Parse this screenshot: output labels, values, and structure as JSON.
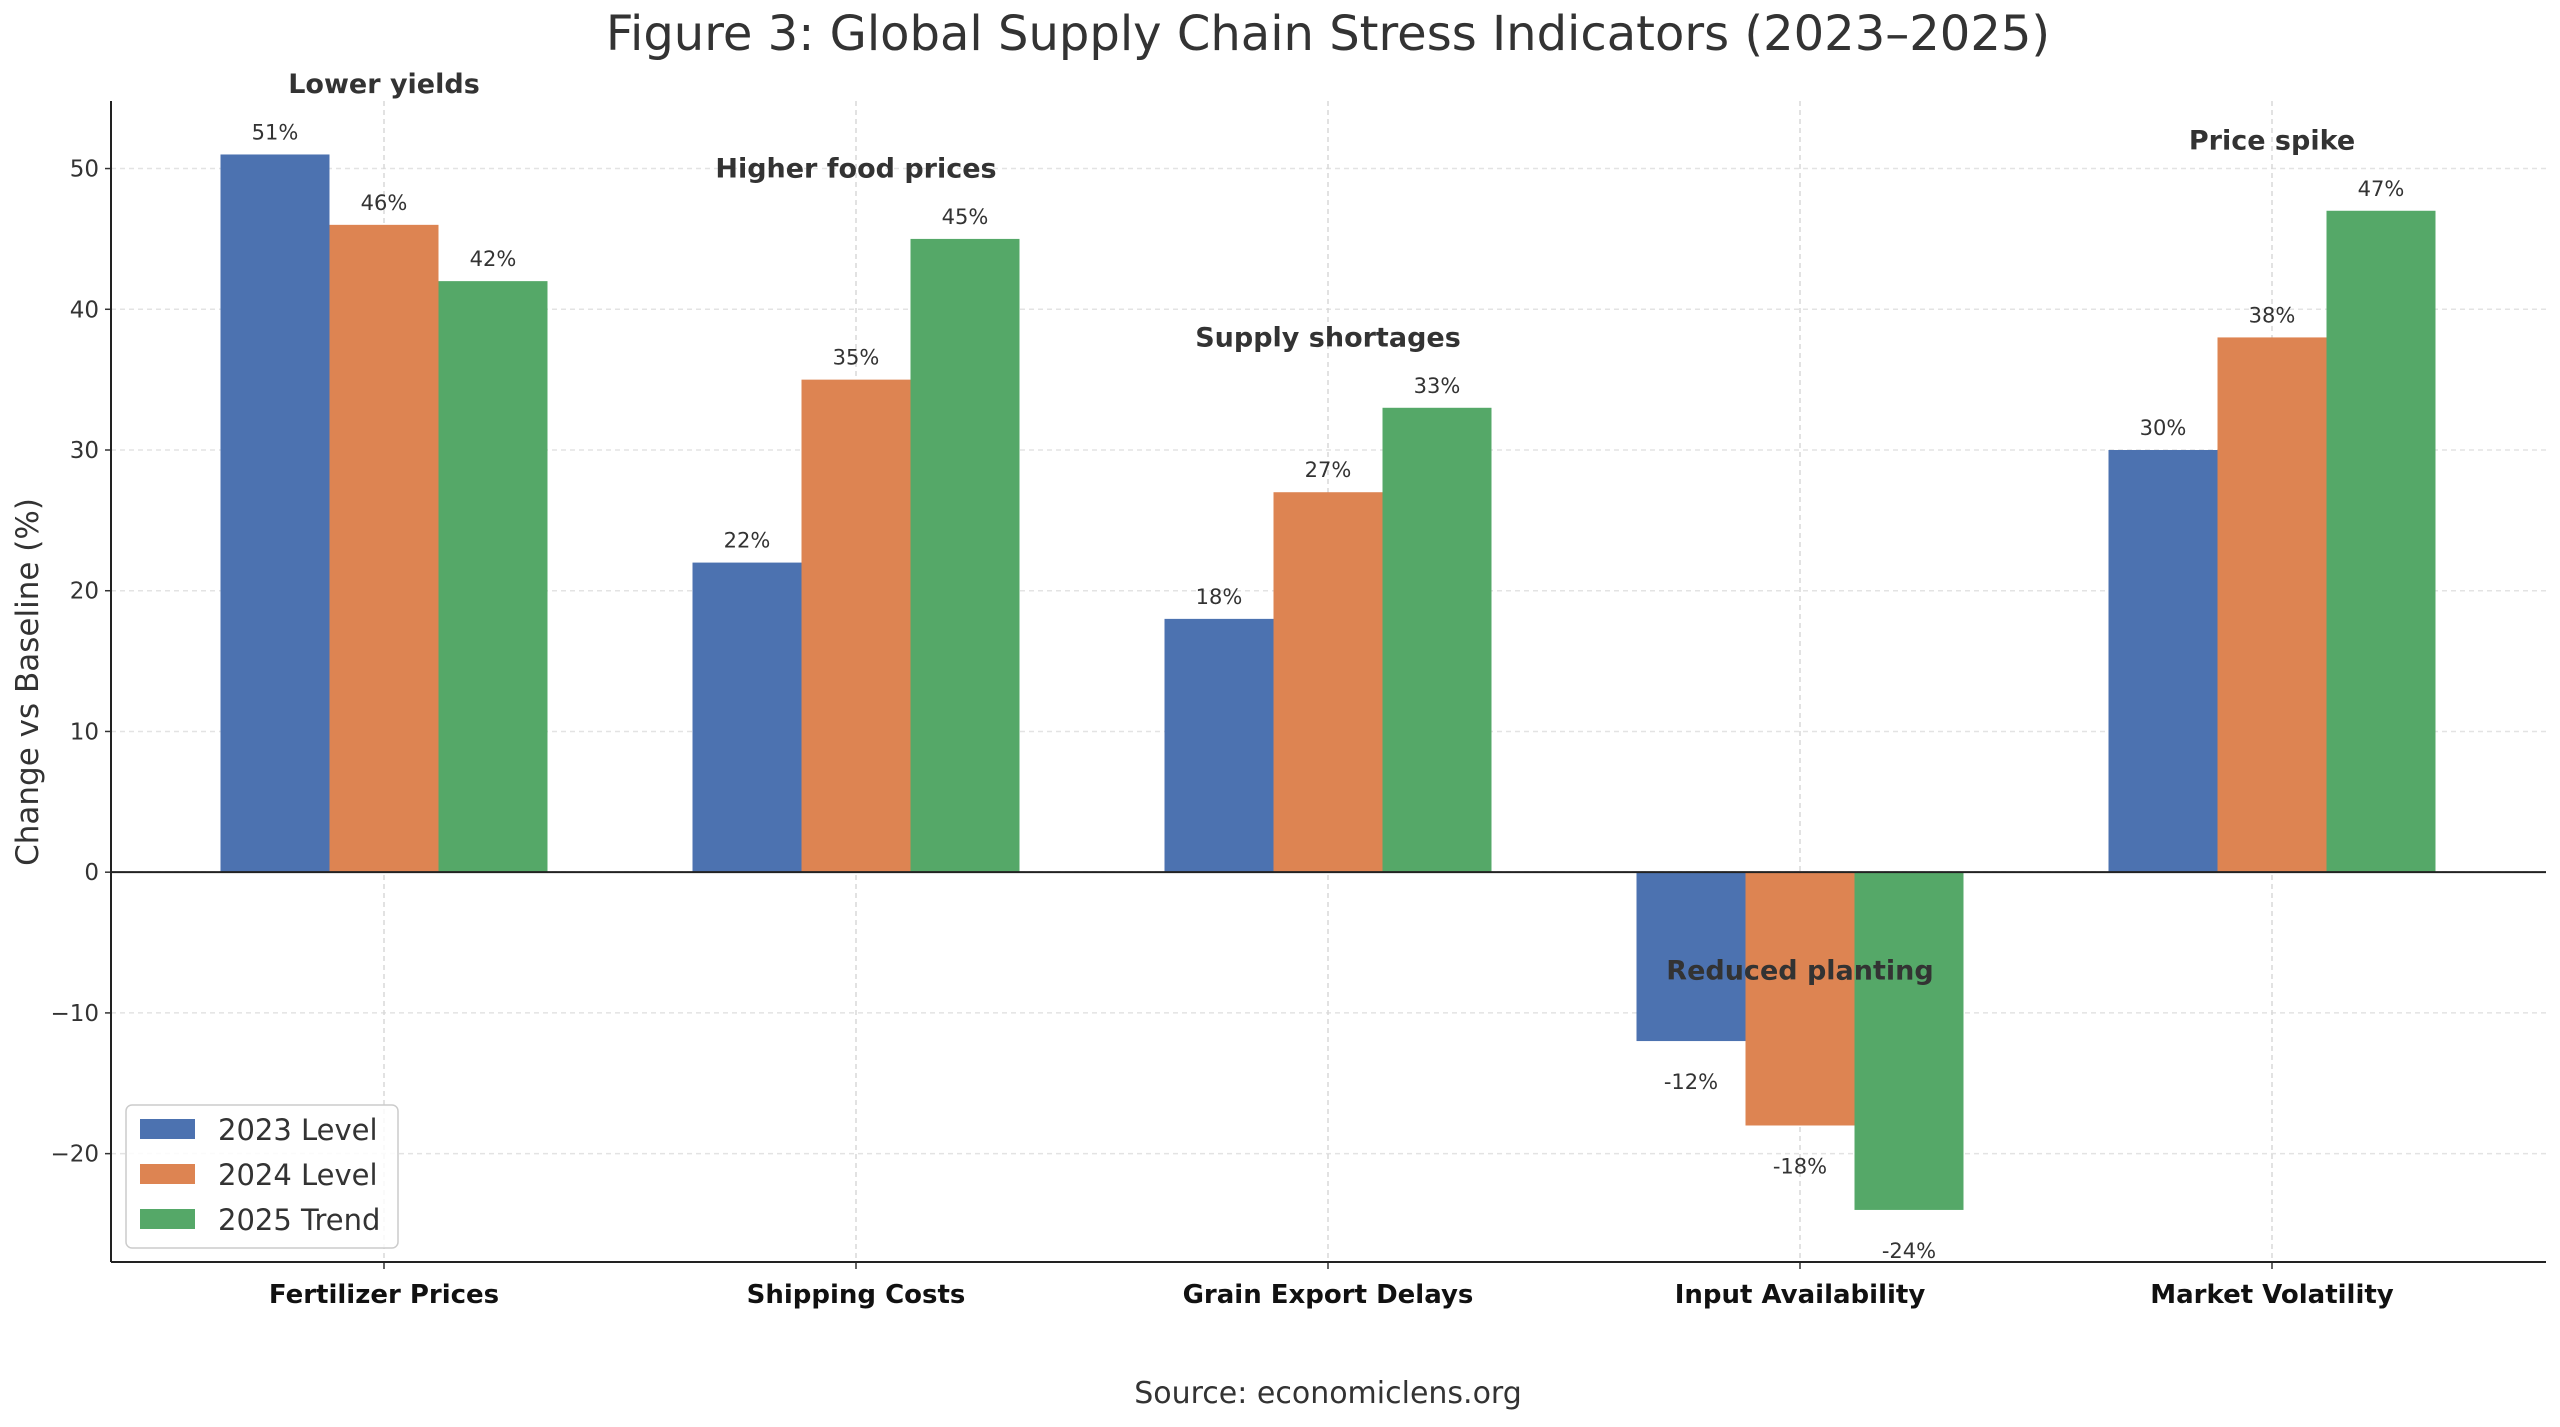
{
  "chart_data": {
    "type": "bar",
    "title": "Figure 3: Global Supply Chain Stress Indicators (2023–2025)",
    "xlabel": "",
    "ylabel": "Change vs Baseline (%)",
    "source": "Source: economiclens.org",
    "categories": [
      "Fertilizer Prices",
      "Shipping Costs",
      "Grain Export Delays",
      "Input Availability",
      "Market Volatility"
    ],
    "series": [
      {
        "name": "2023 Level",
        "color": "#4c72b0",
        "values": [
          51,
          22,
          18,
          -12,
          30
        ]
      },
      {
        "name": "2024 Level",
        "color": "#dd8452",
        "values": [
          46,
          35,
          27,
          -18,
          38
        ]
      },
      {
        "name": "2025 Trend",
        "color": "#55a868",
        "values": [
          42,
          45,
          33,
          -24,
          47
        ]
      }
    ],
    "data_label_suffix": "%",
    "annotations": [
      "Lower yields",
      "Higher food prices",
      "Supply shortages",
      "Reduced planting",
      "Price spike"
    ],
    "ylim": [
      -27.7,
      54.8
    ],
    "yticks": [
      -20,
      -10,
      0,
      10,
      20,
      30,
      40,
      50
    ],
    "ytick_labels": [
      "−20",
      "−10",
      "0",
      "10",
      "20",
      "30",
      "40",
      "50"
    ],
    "grid": true,
    "legend_position": "lower-left"
  }
}
